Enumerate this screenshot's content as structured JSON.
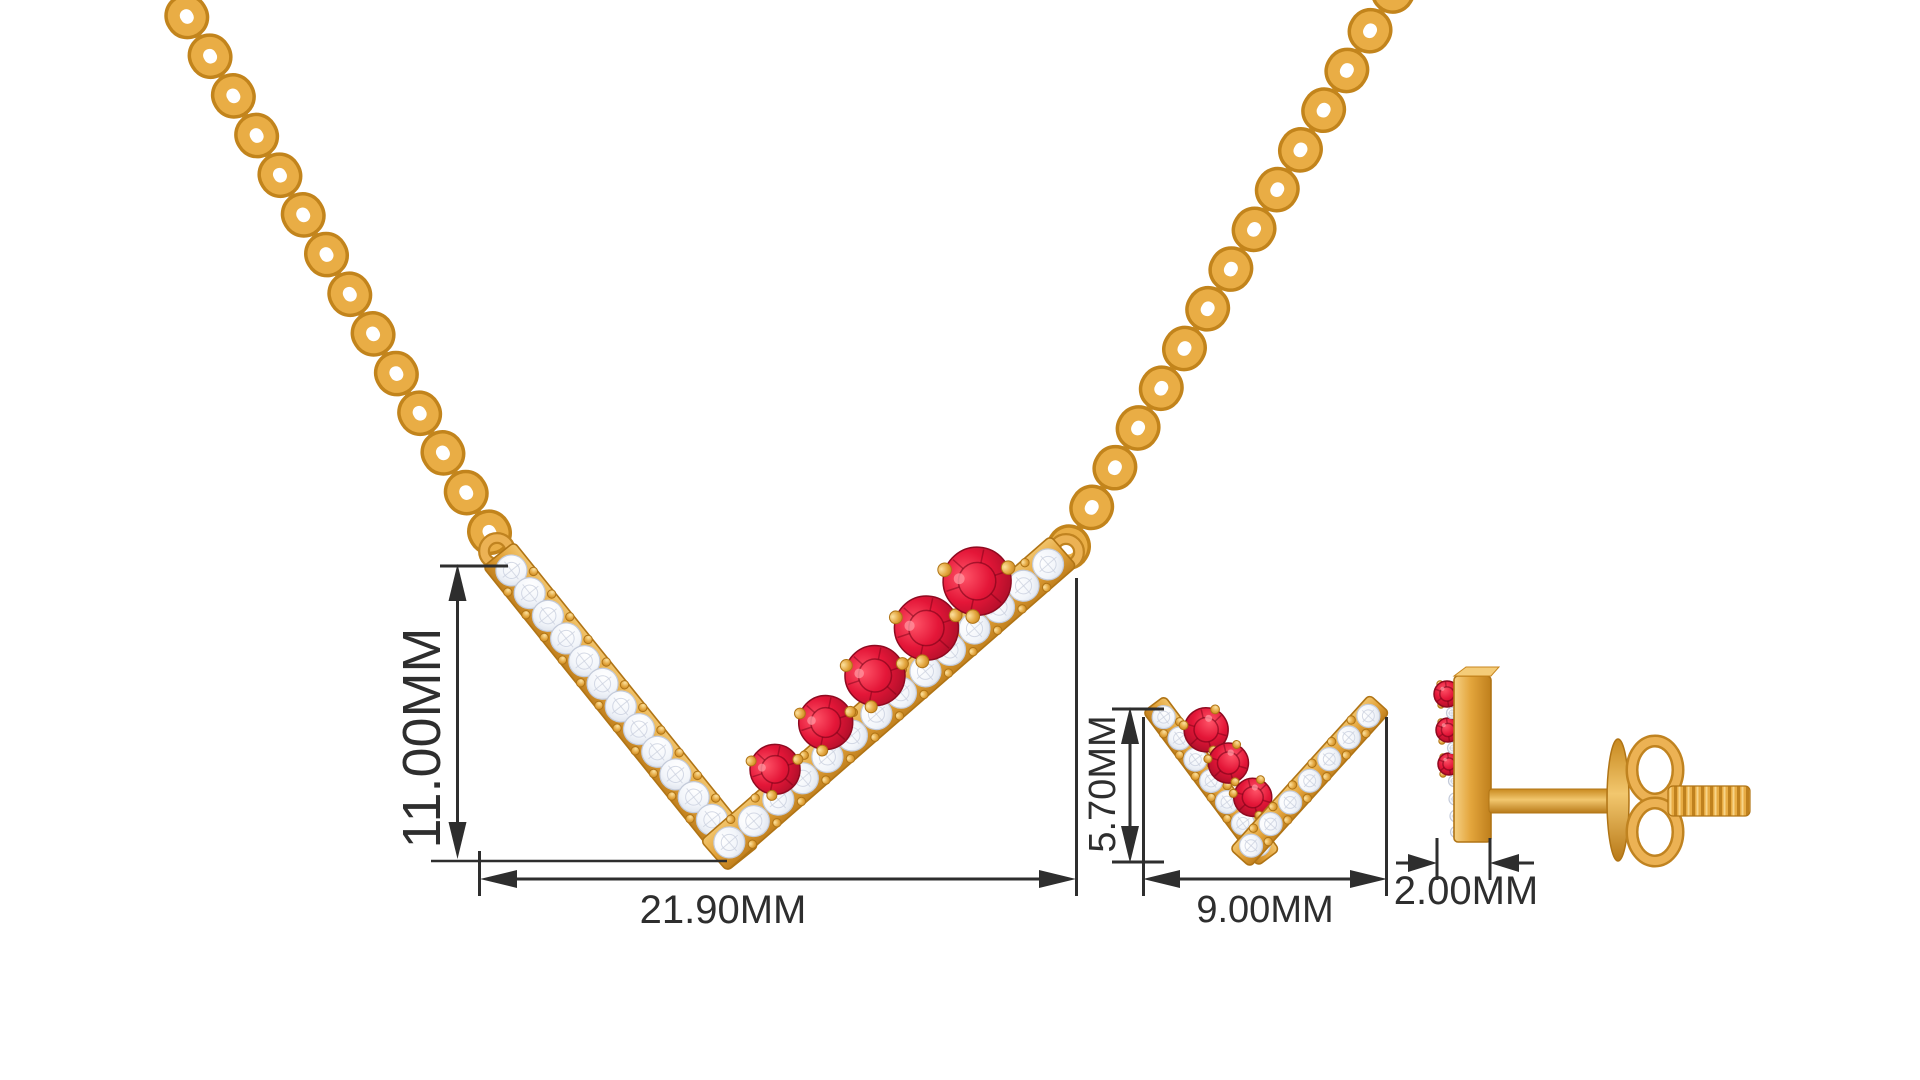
{
  "title": "Ruby and diamond chevron pendant necklace with matching stud earring - dimension diagram",
  "dimensions": {
    "pendant_height": "11.00MM",
    "pendant_width": "21.90MM",
    "earring_height": "5.70MM",
    "earring_width": "9.00MM",
    "earring_depth": "2.00MM"
  },
  "items": {
    "necklace": {
      "name": "chevron-pendant-necklace",
      "ruby_count": 5,
      "accent": "diamond pavé",
      "chain": "gold cable chain"
    },
    "earring_front": {
      "name": "chevron-stud-earring-front",
      "ruby_count": 3,
      "accent": "diamond pavé"
    },
    "earring_side": {
      "name": "chevron-stud-earring-side",
      "back_type": "screw back"
    }
  },
  "colors": {
    "gold": "#E2A43C",
    "gold_dark": "#B87918",
    "gold_light": "#F6CF7F",
    "ruby": "#CE1133",
    "ruby_dark": "#8F0A20",
    "diamond": "#F7F9FC",
    "diamond_edge": "#C5CCDA",
    "annotation": "#2E2E2E",
    "background": "#FFFFFF"
  }
}
